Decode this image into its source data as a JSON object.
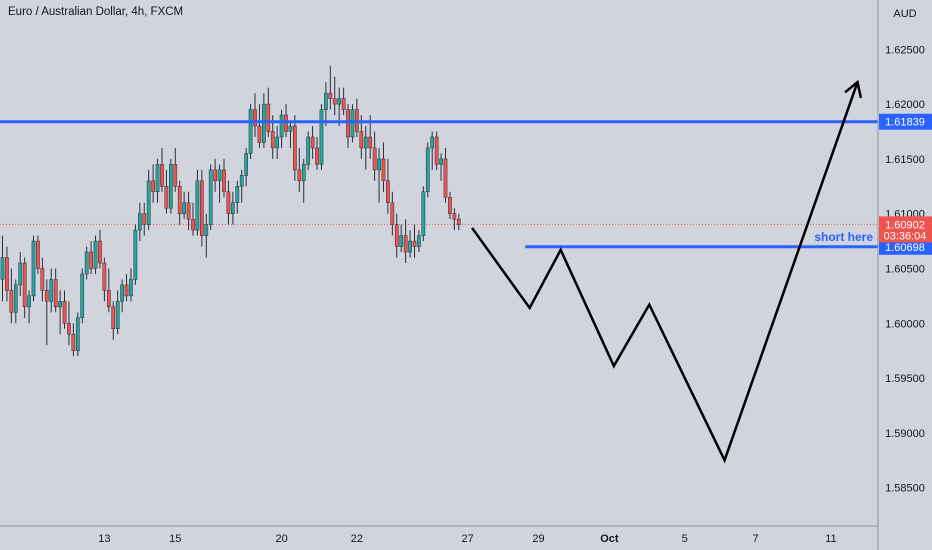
{
  "header": {
    "title": "Euro / Australian Dollar, 4h, FXCM"
  },
  "colors": {
    "background": "#d1d4dc",
    "up": "#26a69a",
    "down": "#ef5350",
    "level": "#2962ff",
    "projection": "#000000",
    "current_price_line": "#ef5350"
  },
  "chart_data": {
    "type": "candlestick",
    "symbol": "Euro / Australian Dollar",
    "interval": "4h",
    "source": "FXCM",
    "currency_label": "AUD",
    "ylim": [
      1.5815,
      1.6295
    ],
    "y_ticks": [
      "1.62500",
      "1.62000",
      "1.61500",
      "1.61000",
      "1.60500",
      "1.60000",
      "1.59500",
      "1.59000",
      "1.58500"
    ],
    "x_ticks": [
      {
        "label": "13",
        "index": 23
      },
      {
        "label": "15",
        "index": 39
      },
      {
        "label": "20",
        "index": 63
      },
      {
        "label": "22",
        "index": 80
      },
      {
        "label": "27",
        "index": 105
      },
      {
        "label": "29",
        "index": 121
      },
      {
        "label": "Oct",
        "index": 137
      },
      {
        "label": "5",
        "index": 154
      },
      {
        "label": "7",
        "index": 170
      },
      {
        "label": "11",
        "index": 187
      }
    ],
    "candles": [
      [
        1.604,
        1.608,
        1.602,
        1.606
      ],
      [
        1.606,
        1.607,
        1.602,
        1.603
      ],
      [
        1.603,
        1.605,
        1.6,
        1.601
      ],
      [
        1.601,
        1.604,
        1.6,
        1.6035
      ],
      [
        1.6035,
        1.6065,
        1.6025,
        1.6055
      ],
      [
        1.6055,
        1.606,
        1.6005,
        1.6015
      ],
      [
        1.6015,
        1.603,
        1.6,
        1.6025
      ],
      [
        1.6025,
        1.608,
        1.602,
        1.6075
      ],
      [
        1.6075,
        1.608,
        1.6045,
        1.605
      ],
      [
        1.605,
        1.606,
        1.602,
        1.603
      ],
      [
        1.603,
        1.604,
        1.598,
        1.602
      ],
      [
        1.602,
        1.605,
        1.601,
        1.604
      ],
      [
        1.604,
        1.605,
        1.601,
        1.6015
      ],
      [
        1.6015,
        1.603,
        1.599,
        1.602
      ],
      [
        1.602,
        1.603,
        1.5995,
        1.6
      ],
      [
        1.6,
        1.602,
        1.598,
        1.599
      ],
      [
        1.599,
        1.6,
        1.597,
        1.5975
      ],
      [
        1.5975,
        1.601,
        1.597,
        1.6005
      ],
      [
        1.6005,
        1.605,
        1.6,
        1.6045
      ],
      [
        1.6045,
        1.607,
        1.604,
        1.6065
      ],
      [
        1.6065,
        1.6075,
        1.6045,
        1.605
      ],
      [
        1.605,
        1.608,
        1.6045,
        1.6075
      ],
      [
        1.6075,
        1.6085,
        1.605,
        1.6055
      ],
      [
        1.6055,
        1.606,
        1.602,
        1.603
      ],
      [
        1.603,
        1.605,
        1.601,
        1.6015
      ],
      [
        1.6015,
        1.602,
        1.5985,
        1.5995
      ],
      [
        1.5995,
        1.603,
        1.599,
        1.602
      ],
      [
        1.602,
        1.604,
        1.601,
        1.6035
      ],
      [
        1.6035,
        1.6045,
        1.602,
        1.6025
      ],
      [
        1.6025,
        1.605,
        1.602,
        1.604
      ],
      [
        1.604,
        1.609,
        1.6035,
        1.6085
      ],
      [
        1.6085,
        1.611,
        1.6075,
        1.61
      ],
      [
        1.61,
        1.611,
        1.608,
        1.609
      ],
      [
        1.609,
        1.614,
        1.6085,
        1.613
      ],
      [
        1.613,
        1.6145,
        1.611,
        1.612
      ],
      [
        1.612,
        1.615,
        1.611,
        1.6145
      ],
      [
        1.6145,
        1.616,
        1.612,
        1.6125
      ],
      [
        1.6125,
        1.614,
        1.61,
        1.6105
      ],
      [
        1.6105,
        1.615,
        1.61,
        1.6145
      ],
      [
        1.6145,
        1.616,
        1.612,
        1.6125
      ],
      [
        1.6125,
        1.613,
        1.609,
        1.61
      ],
      [
        1.61,
        1.612,
        1.6095,
        1.611
      ],
      [
        1.611,
        1.612,
        1.6085,
        1.6095
      ],
      [
        1.6095,
        1.611,
        1.608,
        1.6085
      ],
      [
        1.6085,
        1.614,
        1.608,
        1.613
      ],
      [
        1.613,
        1.614,
        1.607,
        1.608
      ],
      [
        1.608,
        1.61,
        1.606,
        1.609
      ],
      [
        1.609,
        1.6145,
        1.6085,
        1.614
      ],
      [
        1.614,
        1.615,
        1.612,
        1.613
      ],
      [
        1.613,
        1.6145,
        1.611,
        1.614
      ],
      [
        1.614,
        1.615,
        1.6115,
        1.612
      ],
      [
        1.612,
        1.613,
        1.609,
        1.61
      ],
      [
        1.61,
        1.612,
        1.609,
        1.611
      ],
      [
        1.611,
        1.613,
        1.61,
        1.6125
      ],
      [
        1.6125,
        1.614,
        1.611,
        1.6135
      ],
      [
        1.6135,
        1.616,
        1.6125,
        1.6155
      ],
      [
        1.6155,
        1.62,
        1.615,
        1.6195
      ],
      [
        1.6195,
        1.621,
        1.617,
        1.618
      ],
      [
        1.618,
        1.62,
        1.616,
        1.6165
      ],
      [
        1.6165,
        1.621,
        1.616,
        1.62
      ],
      [
        1.62,
        1.6215,
        1.617,
        1.6175
      ],
      [
        1.6175,
        1.619,
        1.615,
        1.616
      ],
      [
        1.616,
        1.618,
        1.615,
        1.617
      ],
      [
        1.617,
        1.6195,
        1.616,
        1.619
      ],
      [
        1.619,
        1.62,
        1.617,
        1.6175
      ],
      [
        1.6175,
        1.6185,
        1.616,
        1.618
      ],
      [
        1.618,
        1.619,
        1.613,
        1.614
      ],
      [
        1.614,
        1.616,
        1.612,
        1.613
      ],
      [
        1.613,
        1.615,
        1.611,
        1.6145
      ],
      [
        1.6145,
        1.6175,
        1.614,
        1.617
      ],
      [
        1.617,
        1.618,
        1.615,
        1.616
      ],
      [
        1.616,
        1.617,
        1.614,
        1.6145
      ],
      [
        1.6145,
        1.62,
        1.614,
        1.6195
      ],
      [
        1.6195,
        1.622,
        1.618,
        1.621
      ],
      [
        1.621,
        1.6235,
        1.6195,
        1.6205
      ],
      [
        1.6205,
        1.6225,
        1.619,
        1.62
      ],
      [
        1.62,
        1.6215,
        1.618,
        1.6205
      ],
      [
        1.6205,
        1.6215,
        1.619,
        1.6195
      ],
      [
        1.6195,
        1.62,
        1.616,
        1.617
      ],
      [
        1.617,
        1.62,
        1.6165,
        1.6195
      ],
      [
        1.6195,
        1.6205,
        1.617,
        1.6175
      ],
      [
        1.6175,
        1.619,
        1.615,
        1.616
      ],
      [
        1.616,
        1.618,
        1.614,
        1.617
      ],
      [
        1.617,
        1.619,
        1.615,
        1.616
      ],
      [
        1.616,
        1.6175,
        1.613,
        1.614
      ],
      [
        1.614,
        1.616,
        1.611,
        1.615
      ],
      [
        1.615,
        1.6165,
        1.612,
        1.613
      ],
      [
        1.613,
        1.615,
        1.61,
        1.611
      ],
      [
        1.611,
        1.612,
        1.608,
        1.609
      ],
      [
        1.609,
        1.61,
        1.606,
        1.607
      ],
      [
        1.607,
        1.609,
        1.6065,
        1.608
      ],
      [
        1.608,
        1.6095,
        1.6055,
        1.6065
      ],
      [
        1.6065,
        1.6085,
        1.606,
        1.6075
      ],
      [
        1.6075,
        1.609,
        1.606,
        1.607
      ],
      [
        1.607,
        1.6085,
        1.6065,
        1.608
      ],
      [
        1.608,
        1.6125,
        1.6075,
        1.612
      ],
      [
        1.612,
        1.6165,
        1.6115,
        1.616
      ],
      [
        1.616,
        1.6175,
        1.614,
        1.617
      ],
      [
        1.617,
        1.6175,
        1.614,
        1.6145
      ],
      [
        1.6145,
        1.6155,
        1.613,
        1.615
      ],
      [
        1.615,
        1.616,
        1.611,
        1.6115
      ],
      [
        1.6115,
        1.612,
        1.6095,
        1.61
      ],
      [
        1.61,
        1.6105,
        1.6085,
        1.6095
      ],
      [
        1.6095,
        1.61,
        1.6085,
        1.609
      ]
    ],
    "level_lines": [
      {
        "price": 1.61839,
        "label": "1.61839"
      },
      {
        "price": 1.60698,
        "label": "1.60698",
        "annotation": "short here"
      }
    ],
    "current_price": {
      "price": 1.60902,
      "label": "1.60902",
      "countdown": "03:36:04"
    },
    "projection_path": [
      {
        "index": 106,
        "price": 1.6087
      },
      {
        "index": 119,
        "price": 1.6014
      },
      {
        "index": 126,
        "price": 1.6067
      },
      {
        "index": 138,
        "price": 1.5961
      },
      {
        "index": 146,
        "price": 1.6017
      },
      {
        "index": 163,
        "price": 1.5875
      },
      {
        "index": 193,
        "price": 1.622
      }
    ]
  }
}
